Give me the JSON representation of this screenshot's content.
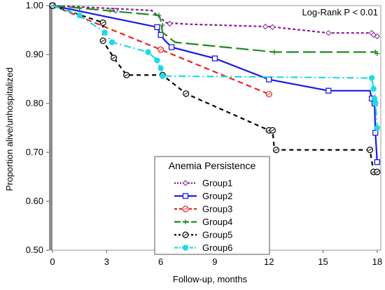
{
  "chart_data": {
    "type": "line",
    "title": "",
    "xlabel": "Follow-up, months",
    "ylabel": "Proportion alive/unhospitalized",
    "xlim": [
      0,
      18.2
    ],
    "ylim": [
      0.5,
      1.0
    ],
    "x_ticks": [
      "0",
      "3",
      "6",
      "9",
      "12",
      "15",
      "18"
    ],
    "y_ticks": [
      "0.50",
      "0.60",
      "0.70",
      "0.80",
      "0.90",
      "1.00"
    ],
    "annotation": "Log-Rank P < 0.01",
    "grid": false,
    "legend": {
      "title": "Anemia Persistence",
      "position": "bottom-center"
    },
    "series": [
      {
        "name": "Group1",
        "color": "#8b1a9a",
        "dash": "4,3",
        "marker": "diamond",
        "points": [
          [
            0,
            1.0
          ],
          [
            5.5,
            0.99
          ],
          [
            6.3,
            0.965
          ],
          [
            7.5,
            0.962
          ],
          [
            12,
            0.957
          ],
          [
            12.3,
            0.956
          ],
          [
            15.3,
            0.944
          ],
          [
            17.7,
            0.944
          ],
          [
            17.8,
            0.94
          ],
          [
            18.0,
            0.937
          ]
        ],
        "markers": [
          [
            0,
            1.0
          ],
          [
            3.5,
            0.99
          ],
          [
            6.5,
            0.963
          ],
          [
            11.8,
            0.957
          ],
          [
            12.2,
            0.956
          ],
          [
            15.3,
            0.944
          ],
          [
            17.7,
            0.944
          ],
          [
            17.8,
            0.94
          ],
          [
            18.0,
            0.937
          ]
        ]
      },
      {
        "name": "Group2",
        "color": "#1a1ae6",
        "dash": "",
        "marker": "square",
        "points": [
          [
            0,
            1.0
          ],
          [
            5.8,
            0.956
          ],
          [
            6.0,
            0.94
          ],
          [
            6.2,
            0.93
          ],
          [
            6.6,
            0.915
          ],
          [
            9.0,
            0.892
          ],
          [
            12.0,
            0.849
          ],
          [
            15.3,
            0.826
          ],
          [
            17.6,
            0.826
          ],
          [
            17.7,
            0.81
          ],
          [
            17.85,
            0.8
          ],
          [
            17.9,
            0.74
          ],
          [
            18.0,
            0.68
          ]
        ],
        "markers": [
          [
            0,
            1.0
          ],
          [
            5.8,
            0.956
          ],
          [
            6.0,
            0.94
          ],
          [
            6.6,
            0.915
          ],
          [
            9.0,
            0.892
          ],
          [
            12.0,
            0.849
          ],
          [
            15.3,
            0.826
          ],
          [
            17.7,
            0.81
          ],
          [
            17.85,
            0.8
          ],
          [
            17.9,
            0.74
          ],
          [
            18.0,
            0.68
          ]
        ]
      },
      {
        "name": "Group3",
        "color": "#ee2222",
        "dash": "8,5",
        "marker": "circle",
        "points": [
          [
            0,
            1.0
          ],
          [
            3.0,
            0.955
          ],
          [
            6.0,
            0.91
          ],
          [
            12.0,
            0.819
          ]
        ],
        "markers": [
          [
            0,
            1.0
          ],
          [
            6.0,
            0.91
          ],
          [
            12.0,
            0.819
          ]
        ]
      },
      {
        "name": "Group4",
        "color": "#1f8a1f",
        "dash": "18,6",
        "marker": "plus",
        "points": [
          [
            0,
            1.0
          ],
          [
            5.9,
            0.98
          ],
          [
            6.0,
            0.97
          ],
          [
            6.1,
            0.945
          ],
          [
            6.8,
            0.925
          ],
          [
            12.3,
            0.905
          ],
          [
            18.0,
            0.905
          ]
        ],
        "markers": [
          [
            0,
            1.0
          ],
          [
            1.5,
            0.995
          ],
          [
            3.2,
            0.99
          ],
          [
            5.9,
            0.98
          ],
          [
            6.1,
            0.96
          ],
          [
            12.3,
            0.905
          ],
          [
            17.9,
            0.905
          ],
          [
            18.0,
            0.902
          ]
        ]
      },
      {
        "name": "Group5",
        "color": "#000000",
        "dash": "6,5",
        "marker": "circle",
        "points": [
          [
            0,
            1.0
          ],
          [
            2.8,
            0.965
          ],
          [
            2.8,
            0.928
          ],
          [
            3.4,
            0.893
          ],
          [
            4.1,
            0.858
          ],
          [
            6.1,
            0.858
          ],
          [
            7.4,
            0.82
          ],
          [
            12.0,
            0.745
          ],
          [
            12.2,
            0.745
          ],
          [
            12.3,
            0.705
          ],
          [
            17.6,
            0.705
          ],
          [
            17.8,
            0.66
          ],
          [
            18.0,
            0.66
          ]
        ],
        "markers": [
          [
            0,
            1.0
          ],
          [
            2.8,
            0.965
          ],
          [
            2.8,
            0.928
          ],
          [
            3.4,
            0.893
          ],
          [
            4.1,
            0.858
          ],
          [
            6.1,
            0.858
          ],
          [
            7.4,
            0.82
          ],
          [
            12.0,
            0.745
          ],
          [
            12.2,
            0.745
          ],
          [
            12.4,
            0.705
          ],
          [
            17.6,
            0.705
          ],
          [
            17.8,
            0.66
          ],
          [
            18.0,
            0.66
          ]
        ]
      },
      {
        "name": "Group6",
        "color": "#22d8e8",
        "dash": "10,4,2,4",
        "marker": "dot",
        "points": [
          [
            0,
            1.0
          ],
          [
            1.5,
            0.98
          ],
          [
            2.9,
            0.945
          ],
          [
            3.3,
            0.925
          ],
          [
            5.3,
            0.905
          ],
          [
            5.8,
            0.888
          ],
          [
            6.0,
            0.872
          ],
          [
            6.1,
            0.856
          ],
          [
            17.7,
            0.852
          ],
          [
            17.8,
            0.83
          ],
          [
            17.9,
            0.81
          ],
          [
            18.0,
            0.75
          ]
        ],
        "markers": [
          [
            1.5,
            0.98
          ],
          [
            2.9,
            0.945
          ],
          [
            3.3,
            0.925
          ],
          [
            5.3,
            0.905
          ],
          [
            5.8,
            0.888
          ],
          [
            6.0,
            0.872
          ],
          [
            6.1,
            0.856
          ],
          [
            17.7,
            0.852
          ],
          [
            17.8,
            0.83
          ],
          [
            17.85,
            0.81
          ],
          [
            17.9,
            0.8
          ],
          [
            18.0,
            0.75
          ]
        ]
      }
    ]
  }
}
